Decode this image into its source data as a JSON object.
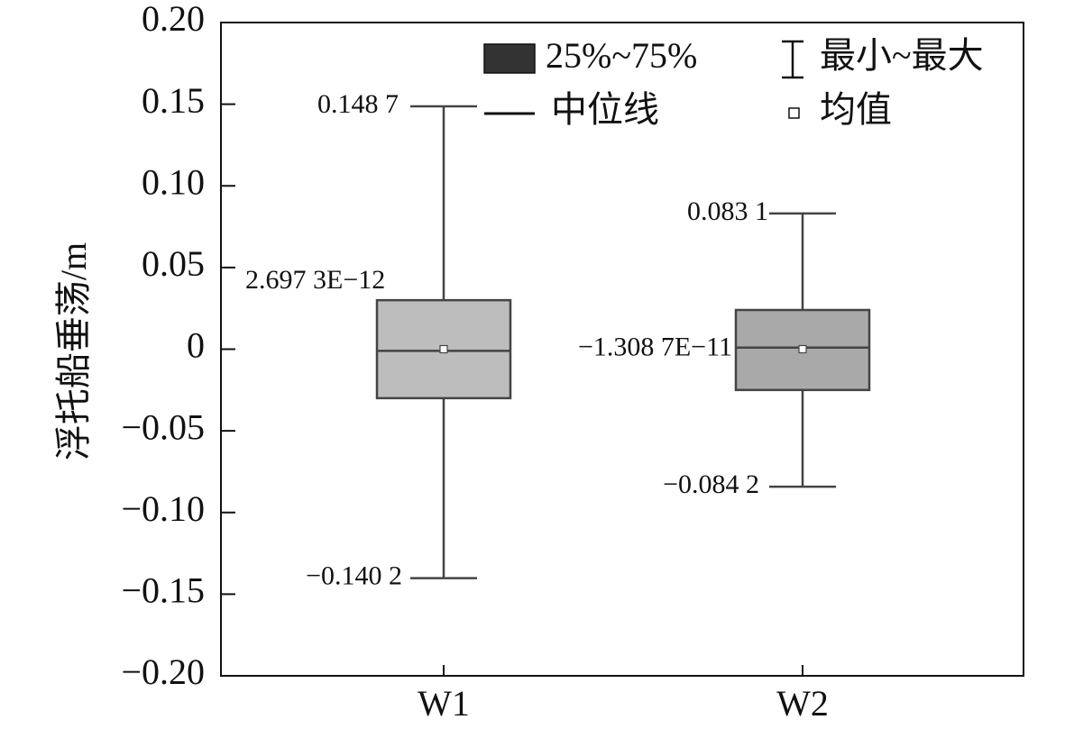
{
  "chart_data": {
    "type": "box",
    "ylabel": "浮托船垂荡/m",
    "ylim": [
      -0.2,
      0.2
    ],
    "yticks": [
      0.2,
      0.15,
      0.1,
      0.05,
      0,
      -0.05,
      -0.1,
      -0.15,
      -0.2
    ],
    "ytick_labels": [
      "0.20",
      "0.15",
      "0.10",
      "0.05",
      "0",
      "−0.05",
      "−0.10",
      "−0.15",
      "−0.20"
    ],
    "categories": [
      "W1",
      "W2"
    ],
    "boxes": [
      {
        "category": "W1",
        "min": -0.1402,
        "q1": -0.03,
        "median": -0.001,
        "mean": 0.0,
        "q3": 0.03,
        "max": 0.1487,
        "fill": "#bdbdbd",
        "labels": {
          "max": "0.148 7",
          "mean": "2.697 3E−12",
          "min": "−0.140 2"
        }
      },
      {
        "category": "W2",
        "min": -0.0842,
        "q1": -0.025,
        "median": 0.001,
        "mean": 0.0,
        "q3": 0.024,
        "max": 0.0831,
        "fill": "#a9a9a9",
        "labels": {
          "max": "0.083 1",
          "mean": "−1.308 7E−11",
          "min": "−0.084 2"
        }
      }
    ],
    "legend": {
      "position": "top-right",
      "items": [
        {
          "key": "box",
          "label": "25%~75%",
          "color": "#333333"
        },
        {
          "key": "whisker",
          "label": "最小~最大"
        },
        {
          "key": "median",
          "label": "中位线"
        },
        {
          "key": "mean",
          "label": "均值"
        }
      ]
    },
    "grid": false
  }
}
